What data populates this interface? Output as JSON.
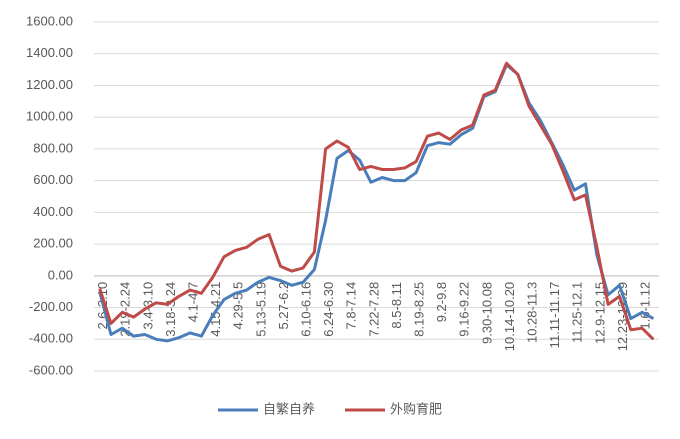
{
  "chart_data": {
    "type": "line",
    "categories": [
      "2.6-2.10",
      null,
      "2.19-2.24",
      null,
      "3.4-3.10",
      null,
      "3.18-3.24",
      null,
      "4.1-4.7",
      null,
      "4.15-4.21",
      null,
      "4.29-5.5",
      null,
      "5.13-5.19",
      null,
      "5.27-6.2",
      null,
      "6.10-6.16",
      null,
      "6.24-6.30",
      null,
      "7.8-7.14",
      null,
      "7.22-7.28",
      null,
      "8.5-8.11",
      null,
      "8.19-8.25",
      null,
      "9.2-9.8",
      null,
      "9.16-9.22",
      null,
      "9.30-10.08",
      null,
      "10.14-10.20",
      null,
      "10.28-11.3",
      null,
      "11.11-11.17",
      null,
      "11.25-12.1",
      null,
      "12.9-12.15",
      null,
      "12.23-12.29",
      null,
      "1.6-1.12",
      null
    ],
    "series": [
      {
        "name": "自繁自养",
        "color": "#4a7ebb",
        "values": [
          -100,
          -370,
          -330,
          -380,
          -370,
          -400,
          -410,
          -390,
          -360,
          -380,
          -250,
          -150,
          -110,
          -90,
          -40,
          -10,
          -30,
          -60,
          -40,
          40,
          350,
          740,
          790,
          730,
          590,
          620,
          600,
          600,
          650,
          820,
          840,
          830,
          890,
          930,
          1130,
          1160,
          1330,
          1270,
          1090,
          980,
          840,
          700,
          540,
          580,
          130,
          -120,
          -60,
          -270,
          -230,
          -270
        ]
      },
      {
        "name": "外购育肥",
        "color": "#be4b48",
        "values": [
          -80,
          -300,
          -230,
          -260,
          -210,
          -170,
          -180,
          -130,
          -90,
          -110,
          -10,
          120,
          160,
          180,
          230,
          260,
          60,
          30,
          50,
          150,
          800,
          850,
          810,
          670,
          690,
          670,
          670,
          680,
          720,
          880,
          900,
          860,
          920,
          950,
          1140,
          1170,
          1340,
          1270,
          1070,
          950,
          830,
          660,
          480,
          510,
          180,
          -180,
          -130,
          -340,
          -330,
          -400
        ]
      }
    ],
    "ylim": [
      -600,
      1600
    ],
    "yticks": [
      {
        "value": -600,
        "label": "-600.00"
      },
      {
        "value": -400,
        "label": "-400.00"
      },
      {
        "value": -200,
        "label": "-200.00"
      },
      {
        "value": 0,
        "label": "0.00"
      },
      {
        "value": 200,
        "label": "200.00"
      },
      {
        "value": 400,
        "label": "400.00"
      },
      {
        "value": 600,
        "label": "600.00"
      },
      {
        "value": 800,
        "label": "800.00"
      },
      {
        "value": 1000,
        "label": "1000.00"
      },
      {
        "value": 1200,
        "label": "1200.00"
      },
      {
        "value": 1400,
        "label": "1400.00"
      },
      {
        "value": 1600,
        "label": "1600.00"
      }
    ],
    "grid": true,
    "legend": "bottom"
  }
}
